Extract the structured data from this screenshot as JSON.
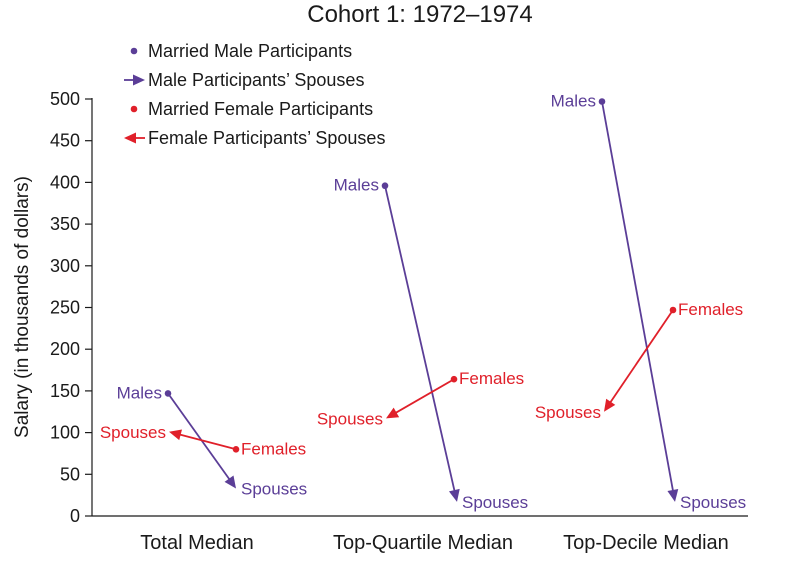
{
  "chart_data": {
    "type": "line",
    "title": "Cohort 1: 1972–1974",
    "xlabel": "",
    "ylabel": "Salary (in thousands of dollars)",
    "ylim": [
      0,
      500
    ],
    "yticks": [
      0,
      50,
      100,
      150,
      200,
      250,
      300,
      350,
      400,
      450,
      500
    ],
    "categories": [
      "Total Median",
      "Top-Quartile Median",
      "Top-Decile Median"
    ],
    "grid": false,
    "legend_position": "top-left",
    "series": [
      {
        "name": "Married Male Participants",
        "values": [
          147,
          396,
          497
        ]
      },
      {
        "name": "Male Participants’ Spouses",
        "values": [
          33,
          17,
          17
        ]
      },
      {
        "name": "Married Female Participants",
        "values": [
          80,
          164,
          247
        ]
      },
      {
        "name": "Female Participants’ Spouses",
        "values": [
          101,
          117,
          125
        ]
      }
    ],
    "point_labels": {
      "male": "Males",
      "male_spouse": "Spouses",
      "female": "Females",
      "female_spouse": "Spouses"
    },
    "colors": {
      "male": "#5b3e97",
      "female": "#e0202a"
    }
  }
}
